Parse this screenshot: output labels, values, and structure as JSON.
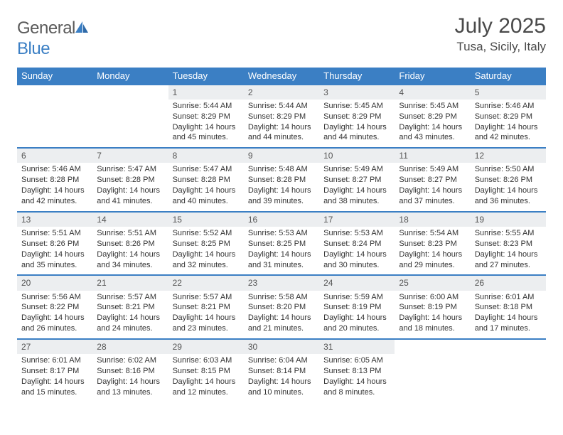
{
  "logo": {
    "part1": "General",
    "part2": "Blue"
  },
  "title": "July 2025",
  "location": "Tusa, Sicily, Italy",
  "colors": {
    "header_bg": "#3b7fc4",
    "header_text": "#ffffff",
    "daynum_bg": "#eceef0",
    "border_accent": "#3b7fc4",
    "text": "#333333",
    "muted": "#5a5a5a"
  },
  "day_labels": [
    "Sunday",
    "Monday",
    "Tuesday",
    "Wednesday",
    "Thursday",
    "Friday",
    "Saturday"
  ],
  "weeks": [
    [
      null,
      null,
      {
        "n": "1",
        "sr": "5:44 AM",
        "ss": "8:29 PM",
        "dl": "14 hours and 45 minutes."
      },
      {
        "n": "2",
        "sr": "5:44 AM",
        "ss": "8:29 PM",
        "dl": "14 hours and 44 minutes."
      },
      {
        "n": "3",
        "sr": "5:45 AM",
        "ss": "8:29 PM",
        "dl": "14 hours and 44 minutes."
      },
      {
        "n": "4",
        "sr": "5:45 AM",
        "ss": "8:29 PM",
        "dl": "14 hours and 43 minutes."
      },
      {
        "n": "5",
        "sr": "5:46 AM",
        "ss": "8:29 PM",
        "dl": "14 hours and 42 minutes."
      }
    ],
    [
      {
        "n": "6",
        "sr": "5:46 AM",
        "ss": "8:28 PM",
        "dl": "14 hours and 42 minutes."
      },
      {
        "n": "7",
        "sr": "5:47 AM",
        "ss": "8:28 PM",
        "dl": "14 hours and 41 minutes."
      },
      {
        "n": "8",
        "sr": "5:47 AM",
        "ss": "8:28 PM",
        "dl": "14 hours and 40 minutes."
      },
      {
        "n": "9",
        "sr": "5:48 AM",
        "ss": "8:28 PM",
        "dl": "14 hours and 39 minutes."
      },
      {
        "n": "10",
        "sr": "5:49 AM",
        "ss": "8:27 PM",
        "dl": "14 hours and 38 minutes."
      },
      {
        "n": "11",
        "sr": "5:49 AM",
        "ss": "8:27 PM",
        "dl": "14 hours and 37 minutes."
      },
      {
        "n": "12",
        "sr": "5:50 AM",
        "ss": "8:26 PM",
        "dl": "14 hours and 36 minutes."
      }
    ],
    [
      {
        "n": "13",
        "sr": "5:51 AM",
        "ss": "8:26 PM",
        "dl": "14 hours and 35 minutes."
      },
      {
        "n": "14",
        "sr": "5:51 AM",
        "ss": "8:26 PM",
        "dl": "14 hours and 34 minutes."
      },
      {
        "n": "15",
        "sr": "5:52 AM",
        "ss": "8:25 PM",
        "dl": "14 hours and 32 minutes."
      },
      {
        "n": "16",
        "sr": "5:53 AM",
        "ss": "8:25 PM",
        "dl": "14 hours and 31 minutes."
      },
      {
        "n": "17",
        "sr": "5:53 AM",
        "ss": "8:24 PM",
        "dl": "14 hours and 30 minutes."
      },
      {
        "n": "18",
        "sr": "5:54 AM",
        "ss": "8:23 PM",
        "dl": "14 hours and 29 minutes."
      },
      {
        "n": "19",
        "sr": "5:55 AM",
        "ss": "8:23 PM",
        "dl": "14 hours and 27 minutes."
      }
    ],
    [
      {
        "n": "20",
        "sr": "5:56 AM",
        "ss": "8:22 PM",
        "dl": "14 hours and 26 minutes."
      },
      {
        "n": "21",
        "sr": "5:57 AM",
        "ss": "8:21 PM",
        "dl": "14 hours and 24 minutes."
      },
      {
        "n": "22",
        "sr": "5:57 AM",
        "ss": "8:21 PM",
        "dl": "14 hours and 23 minutes."
      },
      {
        "n": "23",
        "sr": "5:58 AM",
        "ss": "8:20 PM",
        "dl": "14 hours and 21 minutes."
      },
      {
        "n": "24",
        "sr": "5:59 AM",
        "ss": "8:19 PM",
        "dl": "14 hours and 20 minutes."
      },
      {
        "n": "25",
        "sr": "6:00 AM",
        "ss": "8:19 PM",
        "dl": "14 hours and 18 minutes."
      },
      {
        "n": "26",
        "sr": "6:01 AM",
        "ss": "8:18 PM",
        "dl": "14 hours and 17 minutes."
      }
    ],
    [
      {
        "n": "27",
        "sr": "6:01 AM",
        "ss": "8:17 PM",
        "dl": "14 hours and 15 minutes."
      },
      {
        "n": "28",
        "sr": "6:02 AM",
        "ss": "8:16 PM",
        "dl": "14 hours and 13 minutes."
      },
      {
        "n": "29",
        "sr": "6:03 AM",
        "ss": "8:15 PM",
        "dl": "14 hours and 12 minutes."
      },
      {
        "n": "30",
        "sr": "6:04 AM",
        "ss": "8:14 PM",
        "dl": "14 hours and 10 minutes."
      },
      {
        "n": "31",
        "sr": "6:05 AM",
        "ss": "8:13 PM",
        "dl": "14 hours and 8 minutes."
      },
      null,
      null
    ]
  ],
  "labels": {
    "sunrise": "Sunrise:",
    "sunset": "Sunset:",
    "daylight": "Daylight:"
  }
}
